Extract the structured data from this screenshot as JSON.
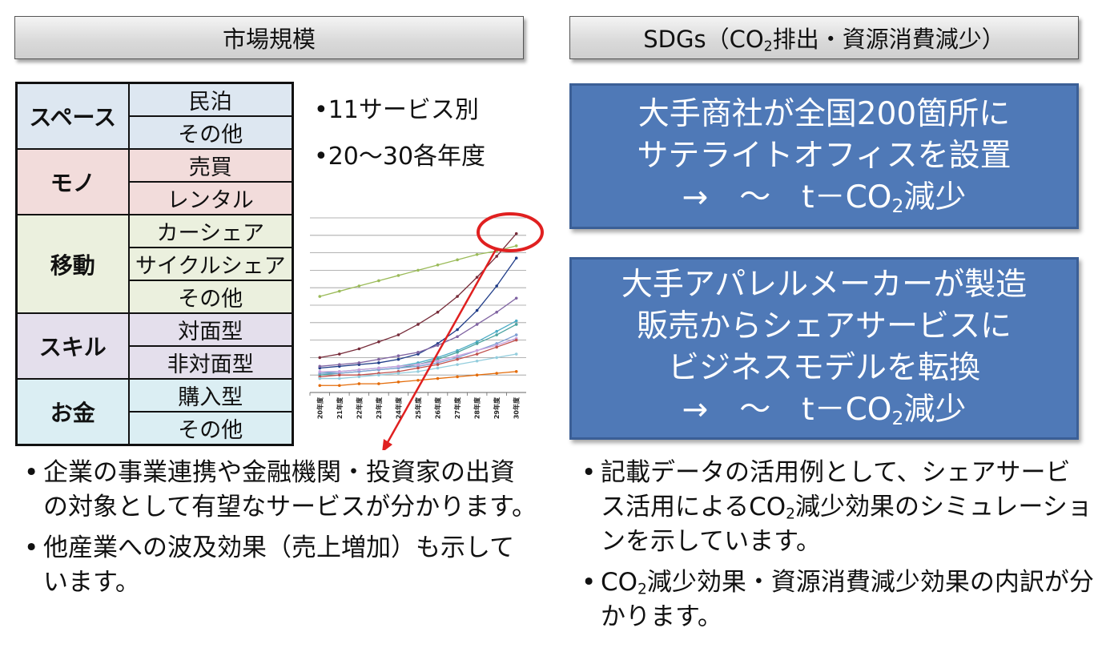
{
  "left_header": "市場規模",
  "right_header": {
    "pre": "SDGs（CO",
    "sub": "2",
    "post": "排出・資源消費減少）"
  },
  "categories": [
    {
      "group": "スペース",
      "color": "#dde7f1",
      "items": [
        "民泊",
        "その他"
      ]
    },
    {
      "group": "モノ",
      "color": "#f2dcdb",
      "items": [
        "売買",
        "レンタル"
      ]
    },
    {
      "group": "移動",
      "color": "#ebf0de",
      "items": [
        "カーシェア",
        "サイクルシェア",
        "その他"
      ]
    },
    {
      "group": "スキル",
      "color": "#e4dfec",
      "items": [
        "対面型",
        "非対面型"
      ]
    },
    {
      "group": "お金",
      "color": "#dbeef3",
      "items": [
        "購入型",
        "その他"
      ]
    }
  ],
  "notes": [
    "•11サービス別",
    "•20～30各年度"
  ],
  "chart_data": {
    "type": "line",
    "categories": [
      "20年度",
      "21年度",
      "22年度",
      "23年度",
      "24年度",
      "25年度",
      "26年度",
      "27年度",
      "28年度",
      "29年度",
      "30年度"
    ],
    "ylim": [
      0,
      100
    ],
    "grid": true,
    "legend": "none",
    "series": [
      {
        "color": "#9bbb59",
        "values": [
          55,
          58,
          61,
          64,
          67,
          70,
          73,
          76,
          79,
          81,
          84
        ]
      },
      {
        "color": "#772c3a",
        "values": [
          20,
          22,
          25,
          29,
          33,
          39,
          46,
          55,
          66,
          78,
          91
        ]
      },
      {
        "color": "#1f3c88",
        "values": [
          14,
          15,
          16,
          17,
          19,
          22,
          28,
          36,
          47,
          61,
          77
        ]
      },
      {
        "color": "#8064a2",
        "values": [
          15,
          16,
          17,
          19,
          21,
          23,
          27,
          32,
          39,
          46,
          54
        ]
      },
      {
        "color": "#4bacc6",
        "values": [
          11,
          12,
          13,
          14,
          15,
          17,
          20,
          24,
          29,
          35,
          41
        ]
      },
      {
        "color": "#4aa3a0",
        "values": [
          10,
          11,
          12,
          13,
          14,
          16,
          19,
          23,
          28,
          33,
          39
        ]
      },
      {
        "color": "#7f9fd4",
        "values": [
          11,
          11,
          12,
          13,
          14,
          15,
          17,
          20,
          24,
          28,
          33
        ]
      },
      {
        "color": "#c9a0dc",
        "values": [
          12,
          12,
          13,
          14,
          15,
          16,
          18,
          21,
          24,
          27,
          31
        ]
      },
      {
        "color": "#c0504d",
        "values": [
          9,
          10,
          10,
          11,
          12,
          14,
          16,
          19,
          22,
          26,
          30
        ]
      },
      {
        "color": "#93cddd",
        "values": [
          8,
          8,
          9,
          10,
          11,
          12,
          14,
          16,
          18,
          20,
          22
        ]
      },
      {
        "color": "#e46c0a",
        "values": [
          4,
          4,
          5,
          5,
          6,
          7,
          8,
          9,
          10,
          11,
          12
        ]
      }
    ],
    "highlight": {
      "shape": "ellipse",
      "color": "#e02020"
    }
  },
  "box1_lines": [
    {
      "pre": "大手商社が全国200箇所に"
    },
    {
      "pre": "サテライトオフィスを設置"
    },
    {
      "pre": "→　～　t－CO",
      "sub": "2",
      "post": "減少"
    }
  ],
  "box2_lines": [
    {
      "pre": "大手アパレルメーカーが製造"
    },
    {
      "pre": "販売からシェアサービスに"
    },
    {
      "pre": "ビジネスモデルを転換"
    },
    {
      "pre": "→　～　t－CO",
      "sub": "2",
      "post": "減少"
    }
  ],
  "left_bullets": [
    {
      "pre": "企業の事業連携や金融機関・投資家の出資の対象として有望なサービスが分かります。"
    },
    {
      "pre": "他産業への波及効果（売上増加）も示しています。"
    }
  ],
  "right_bullets": [
    {
      "pre": "記載データの活用例として、シェアサービス活用によるCO",
      "sub": "2",
      "post": "減少効果のシミュレーションを示しています。"
    },
    {
      "pre": "CO",
      "sub": "2",
      "post": "減少効果・資源消費減少効果の内訳が分かります。"
    }
  ],
  "colors": {
    "box_fill": "#4f79b7",
    "highlight_red": "#e02020"
  }
}
